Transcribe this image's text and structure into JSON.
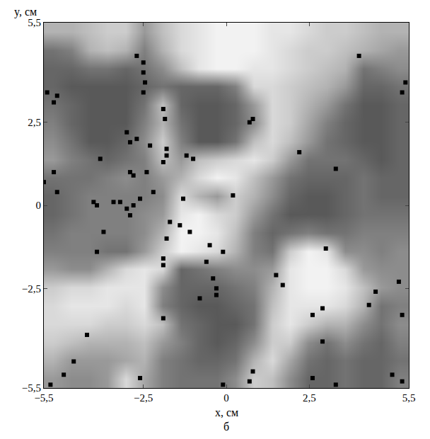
{
  "chart_data": {
    "type": "heatmap",
    "x_label": "x, см",
    "y_label": "y, см",
    "panel_label": "б",
    "xlim": [
      -5.5,
      5.5
    ],
    "ylim": [
      -5.5,
      5.5
    ],
    "xticks": [
      {
        "value": -5.5,
        "label": "−5,5"
      },
      {
        "value": -2.5,
        "label": "−2,5"
      },
      0,
      {
        "value": 2.5,
        "label": "2,5"
      },
      {
        "value": 5.5,
        "label": "5,5"
      }
    ],
    "yticks": [
      {
        "value": -5.5,
        "label": "−5,5"
      },
      {
        "value": -2.5,
        "label": "−2,5"
      },
      0,
      {
        "value": 2.5,
        "label": "2,5"
      },
      {
        "value": 5.5,
        "label": "5,5"
      }
    ],
    "zlim": [
      0,
      1
    ],
    "x": [
      -5.225,
      -4.675,
      -4.125,
      -3.575,
      -3.025,
      -2.475,
      -1.925,
      -1.375,
      -0.825,
      -0.275,
      0.275,
      0.825,
      1.375,
      1.925,
      2.475,
      3.025,
      3.575,
      4.125,
      4.675,
      5.225
    ],
    "y": [
      -5.225,
      -4.675,
      -4.125,
      -3.575,
      -3.025,
      -2.475,
      -1.925,
      -1.375,
      -0.825,
      -0.275,
      0.275,
      0.825,
      1.375,
      1.925,
      2.475,
      3.025,
      3.575,
      4.125,
      4.675,
      5.225
    ],
    "z": [
      [
        0.6,
        0.55,
        0.55,
        0.6,
        0.85,
        0.65,
        0.5,
        0.45,
        0.45,
        0.45,
        0.55,
        0.8,
        0.75,
        0.55,
        0.4,
        0.4,
        0.45,
        0.4,
        0.4,
        0.5
      ],
      [
        0.7,
        0.6,
        0.6,
        0.6,
        0.65,
        0.7,
        0.5,
        0.45,
        0.4,
        0.4,
        0.45,
        0.7,
        0.85,
        0.65,
        0.45,
        0.4,
        0.45,
        0.4,
        0.4,
        0.45
      ],
      [
        0.8,
        0.75,
        0.7,
        0.7,
        0.7,
        0.75,
        0.6,
        0.5,
        0.4,
        0.35,
        0.4,
        0.55,
        0.8,
        0.8,
        0.55,
        0.45,
        0.55,
        0.45,
        0.4,
        0.5
      ],
      [
        0.85,
        0.85,
        0.85,
        0.8,
        0.8,
        0.85,
        0.75,
        0.45,
        0.4,
        0.35,
        0.35,
        0.45,
        0.8,
        0.9,
        0.8,
        0.7,
        0.7,
        0.55,
        0.45,
        0.55
      ],
      [
        0.85,
        0.9,
        0.9,
        0.9,
        0.85,
        0.9,
        0.5,
        0.4,
        0.35,
        0.35,
        0.4,
        0.45,
        0.75,
        0.9,
        0.9,
        0.9,
        0.85,
        0.7,
        0.45,
        0.5
      ],
      [
        0.8,
        0.85,
        0.85,
        0.9,
        0.9,
        0.9,
        0.55,
        0.4,
        0.4,
        0.4,
        0.45,
        0.5,
        0.7,
        0.9,
        0.95,
        0.95,
        0.9,
        0.75,
        0.6,
        0.55
      ],
      [
        0.6,
        0.55,
        0.55,
        0.7,
        0.85,
        0.9,
        0.85,
        0.4,
        0.45,
        0.5,
        0.55,
        0.55,
        0.6,
        0.9,
        0.95,
        0.95,
        0.85,
        0.6,
        0.55,
        0.55
      ],
      [
        0.5,
        0.5,
        0.5,
        0.45,
        0.45,
        0.6,
        0.8,
        0.95,
        0.9,
        0.85,
        0.7,
        0.5,
        0.45,
        0.8,
        0.95,
        0.9,
        0.55,
        0.55,
        0.5,
        0.55
      ],
      [
        0.45,
        0.5,
        0.5,
        0.5,
        0.5,
        0.55,
        0.7,
        0.95,
        0.95,
        0.9,
        0.75,
        0.5,
        0.4,
        0.45,
        0.5,
        0.45,
        0.45,
        0.5,
        0.5,
        0.5
      ],
      [
        0.4,
        0.45,
        0.5,
        0.5,
        0.5,
        0.55,
        0.6,
        0.9,
        0.95,
        0.85,
        0.8,
        0.6,
        0.45,
        0.35,
        0.35,
        0.35,
        0.4,
        0.45,
        0.45,
        0.45
      ],
      [
        0.4,
        0.45,
        0.5,
        0.5,
        0.5,
        0.5,
        0.55,
        0.85,
        0.7,
        0.6,
        0.8,
        0.7,
        0.55,
        0.4,
        0.35,
        0.35,
        0.4,
        0.45,
        0.4,
        0.4
      ],
      [
        0.45,
        0.45,
        0.45,
        0.5,
        0.55,
        0.5,
        0.6,
        0.7,
        0.85,
        0.95,
        0.9,
        0.75,
        0.6,
        0.45,
        0.4,
        0.4,
        0.4,
        0.45,
        0.4,
        0.4
      ],
      [
        0.6,
        0.5,
        0.45,
        0.4,
        0.45,
        0.5,
        0.75,
        0.6,
        0.75,
        0.8,
        0.85,
        0.9,
        0.8,
        0.6,
        0.45,
        0.45,
        0.45,
        0.4,
        0.35,
        0.4
      ],
      [
        0.55,
        0.45,
        0.35,
        0.35,
        0.4,
        0.55,
        0.8,
        0.5,
        0.35,
        0.35,
        0.45,
        0.75,
        0.85,
        0.75,
        0.6,
        0.45,
        0.4,
        0.35,
        0.35,
        0.4
      ],
      [
        0.5,
        0.4,
        0.35,
        0.35,
        0.35,
        0.5,
        0.7,
        0.45,
        0.35,
        0.35,
        0.4,
        0.55,
        0.85,
        0.8,
        0.65,
        0.5,
        0.4,
        0.35,
        0.35,
        0.4
      ],
      [
        0.45,
        0.4,
        0.35,
        0.35,
        0.35,
        0.45,
        0.75,
        0.4,
        0.35,
        0.35,
        0.4,
        0.6,
        0.85,
        0.8,
        0.7,
        0.6,
        0.45,
        0.35,
        0.35,
        0.4
      ],
      [
        0.4,
        0.35,
        0.35,
        0.35,
        0.35,
        0.4,
        0.45,
        0.4,
        0.4,
        0.4,
        0.5,
        0.85,
        0.85,
        0.8,
        0.75,
        0.7,
        0.6,
        0.4,
        0.4,
        0.45
      ],
      [
        0.4,
        0.4,
        0.45,
        0.45,
        0.4,
        0.45,
        0.55,
        0.75,
        0.9,
        0.95,
        0.95,
        0.9,
        0.9,
        0.85,
        0.8,
        0.75,
        0.7,
        0.45,
        0.5,
        0.55
      ],
      [
        0.45,
        0.5,
        0.7,
        0.75,
        0.7,
        0.5,
        0.7,
        0.85,
        0.9,
        0.95,
        0.95,
        0.95,
        0.9,
        0.85,
        0.8,
        0.8,
        0.75,
        0.7,
        0.65,
        0.6
      ],
      [
        0.7,
        0.7,
        0.75,
        0.8,
        0.8,
        0.6,
        0.75,
        0.85,
        0.9,
        0.95,
        0.95,
        0.95,
        0.9,
        0.9,
        0.85,
        0.8,
        0.8,
        0.75,
        0.7,
        0.7
      ]
    ],
    "points": {
      "color": "#000000",
      "marker": "square",
      "x": [
        -2.7,
        -2.5,
        -2.5,
        -2.45,
        -2.5,
        -5.1,
        -5.2,
        -5.4,
        -1.9,
        -1.85,
        -3.0,
        -2.9,
        -2.7,
        -2.3,
        -1.8,
        -1.8,
        -1.9,
        -1.2,
        -1.0,
        0.7,
        0.8,
        4.0,
        5.4,
        5.3,
        -2.9,
        -2.8,
        -2.4,
        -3.8,
        -5.2,
        -5.5,
        -5.1,
        -4.0,
        -3.9,
        -3.4,
        -3.2,
        -3.0,
        -2.9,
        -2.8,
        -2.6,
        -2.2,
        -1.3,
        0.2,
        2.2,
        3.3,
        -3.7,
        -3.9,
        -1.7,
        -1.4,
        -1.1,
        -1.8,
        -1.9,
        -1.9,
        -0.5,
        -0.6,
        -0.1,
        -0.4,
        -0.3,
        -0.3,
        -0.8,
        -1.9,
        1.5,
        1.7,
        3.0,
        2.9,
        2.6,
        2.9,
        4.5,
        4.3,
        5.2,
        5.3,
        -4.2,
        -4.9,
        -5.3,
        -4.6,
        0.8,
        0.7,
        2.6,
        3.3,
        5.3,
        5.0,
        -2.6,
        -0.1
      ],
      "y": [
        4.5,
        4.3,
        4.0,
        3.7,
        3.4,
        3.3,
        3.1,
        3.4,
        2.9,
        2.6,
        2.2,
        1.9,
        2.0,
        1.8,
        1.7,
        1.5,
        1.3,
        1.5,
        1.4,
        2.5,
        2.6,
        4.5,
        3.7,
        3.4,
        1.0,
        0.9,
        1.0,
        1.4,
        1.0,
        0.7,
        0.4,
        0.1,
        0.0,
        0.1,
        0.1,
        -0.1,
        -0.3,
        0.0,
        0.2,
        0.4,
        0.2,
        0.3,
        1.6,
        1.1,
        -0.8,
        -1.4,
        -0.5,
        -0.6,
        -0.8,
        -1.0,
        -1.6,
        -1.8,
        -1.2,
        -1.7,
        -1.4,
        -2.2,
        -2.5,
        -2.7,
        -2.8,
        -3.4,
        -2.1,
        -2.4,
        -1.3,
        -3.1,
        -3.3,
        -4.1,
        -2.6,
        -3.0,
        -2.3,
        -3.3,
        -3.9,
        -5.1,
        -5.4,
        -4.7,
        -5.0,
        -5.3,
        -5.2,
        -5.4,
        -5.3,
        -5.1,
        -5.2,
        -5.4
      ]
    }
  }
}
